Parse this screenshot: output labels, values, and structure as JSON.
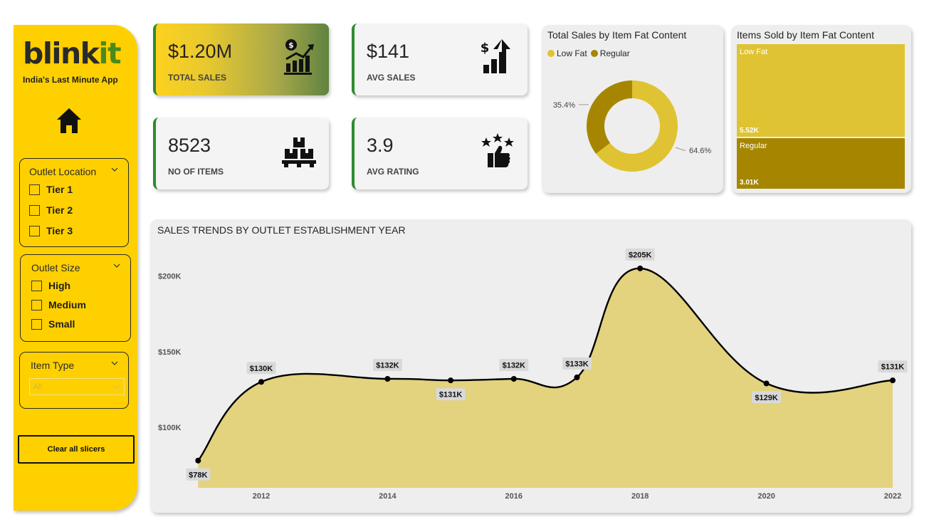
{
  "sidebar": {
    "logo_main": "blink",
    "logo_accent": "it",
    "tagline": "India's Last Minute App",
    "slicers": [
      {
        "title": "Outlet Location",
        "options": [
          "Tier 1",
          "Tier 2",
          "Tier 3"
        ]
      },
      {
        "title": "Outlet Size",
        "options": [
          "High",
          "Medium",
          "Small"
        ]
      },
      {
        "title": "Item Type",
        "selected": "All"
      }
    ],
    "clear_button": "Clear all slicers"
  },
  "kpis": [
    {
      "value": "$1.20M",
      "label": "TOTAL SALES",
      "icon": "sales-growth-icon"
    },
    {
      "value": "$141",
      "label": "AVG SALES",
      "icon": "dollar-chart-icon"
    },
    {
      "value": "8523",
      "label": "NO OF ITEMS",
      "icon": "boxes-icon"
    },
    {
      "value": "3.9",
      "label": "AVG RATING",
      "icon": "rating-thumbs-up-icon"
    }
  ],
  "colors": {
    "brand_yellow": "#ffd000",
    "low_fat": "#e0c332",
    "regular": "#a68600",
    "area_fill": "#e3d27e",
    "kpi_border": "#2e8b2e"
  },
  "chart_data": [
    {
      "type": "pie",
      "title": "Total Sales by Item Fat Content",
      "legend": [
        "Low Fat",
        "Regular"
      ],
      "slices": [
        {
          "name": "Low Fat",
          "value": 64.6,
          "label": "64.6%"
        },
        {
          "name": "Regular",
          "value": 35.4,
          "label": "35.4%"
        }
      ],
      "donut": true,
      "legend_position": "top-left"
    },
    {
      "type": "heatmap",
      "subtype": "treemap",
      "title": "Items Sold by Item Fat Content",
      "cells": [
        {
          "name": "Low Fat",
          "value": 5520,
          "label": "5.52K"
        },
        {
          "name": "Regular",
          "value": 3010,
          "label": "3.01K"
        }
      ]
    },
    {
      "type": "area",
      "title": "SALES TRENDS BY OUTLET ESTABLISHMENT YEAR",
      "x": [
        2011,
        2012,
        2014,
        2015,
        2016,
        2017,
        2018,
        2020,
        2022
      ],
      "values": [
        78,
        130,
        132,
        131,
        132,
        133,
        205,
        129,
        131
      ],
      "data_labels": [
        "$78K",
        "$130K",
        "$132K",
        "$131K",
        "$132K",
        "$133K",
        "$205K",
        "$129K",
        "$131K"
      ],
      "xticks": [
        "2012",
        "2014",
        "2016",
        "2018",
        "2020",
        "2022"
      ],
      "yticks": [
        "$100K",
        "$150K",
        "$200K"
      ],
      "ytick_values": [
        100,
        150,
        200
      ],
      "xlabel": "",
      "ylabel": "",
      "unit": "$K",
      "grid": false
    }
  ]
}
